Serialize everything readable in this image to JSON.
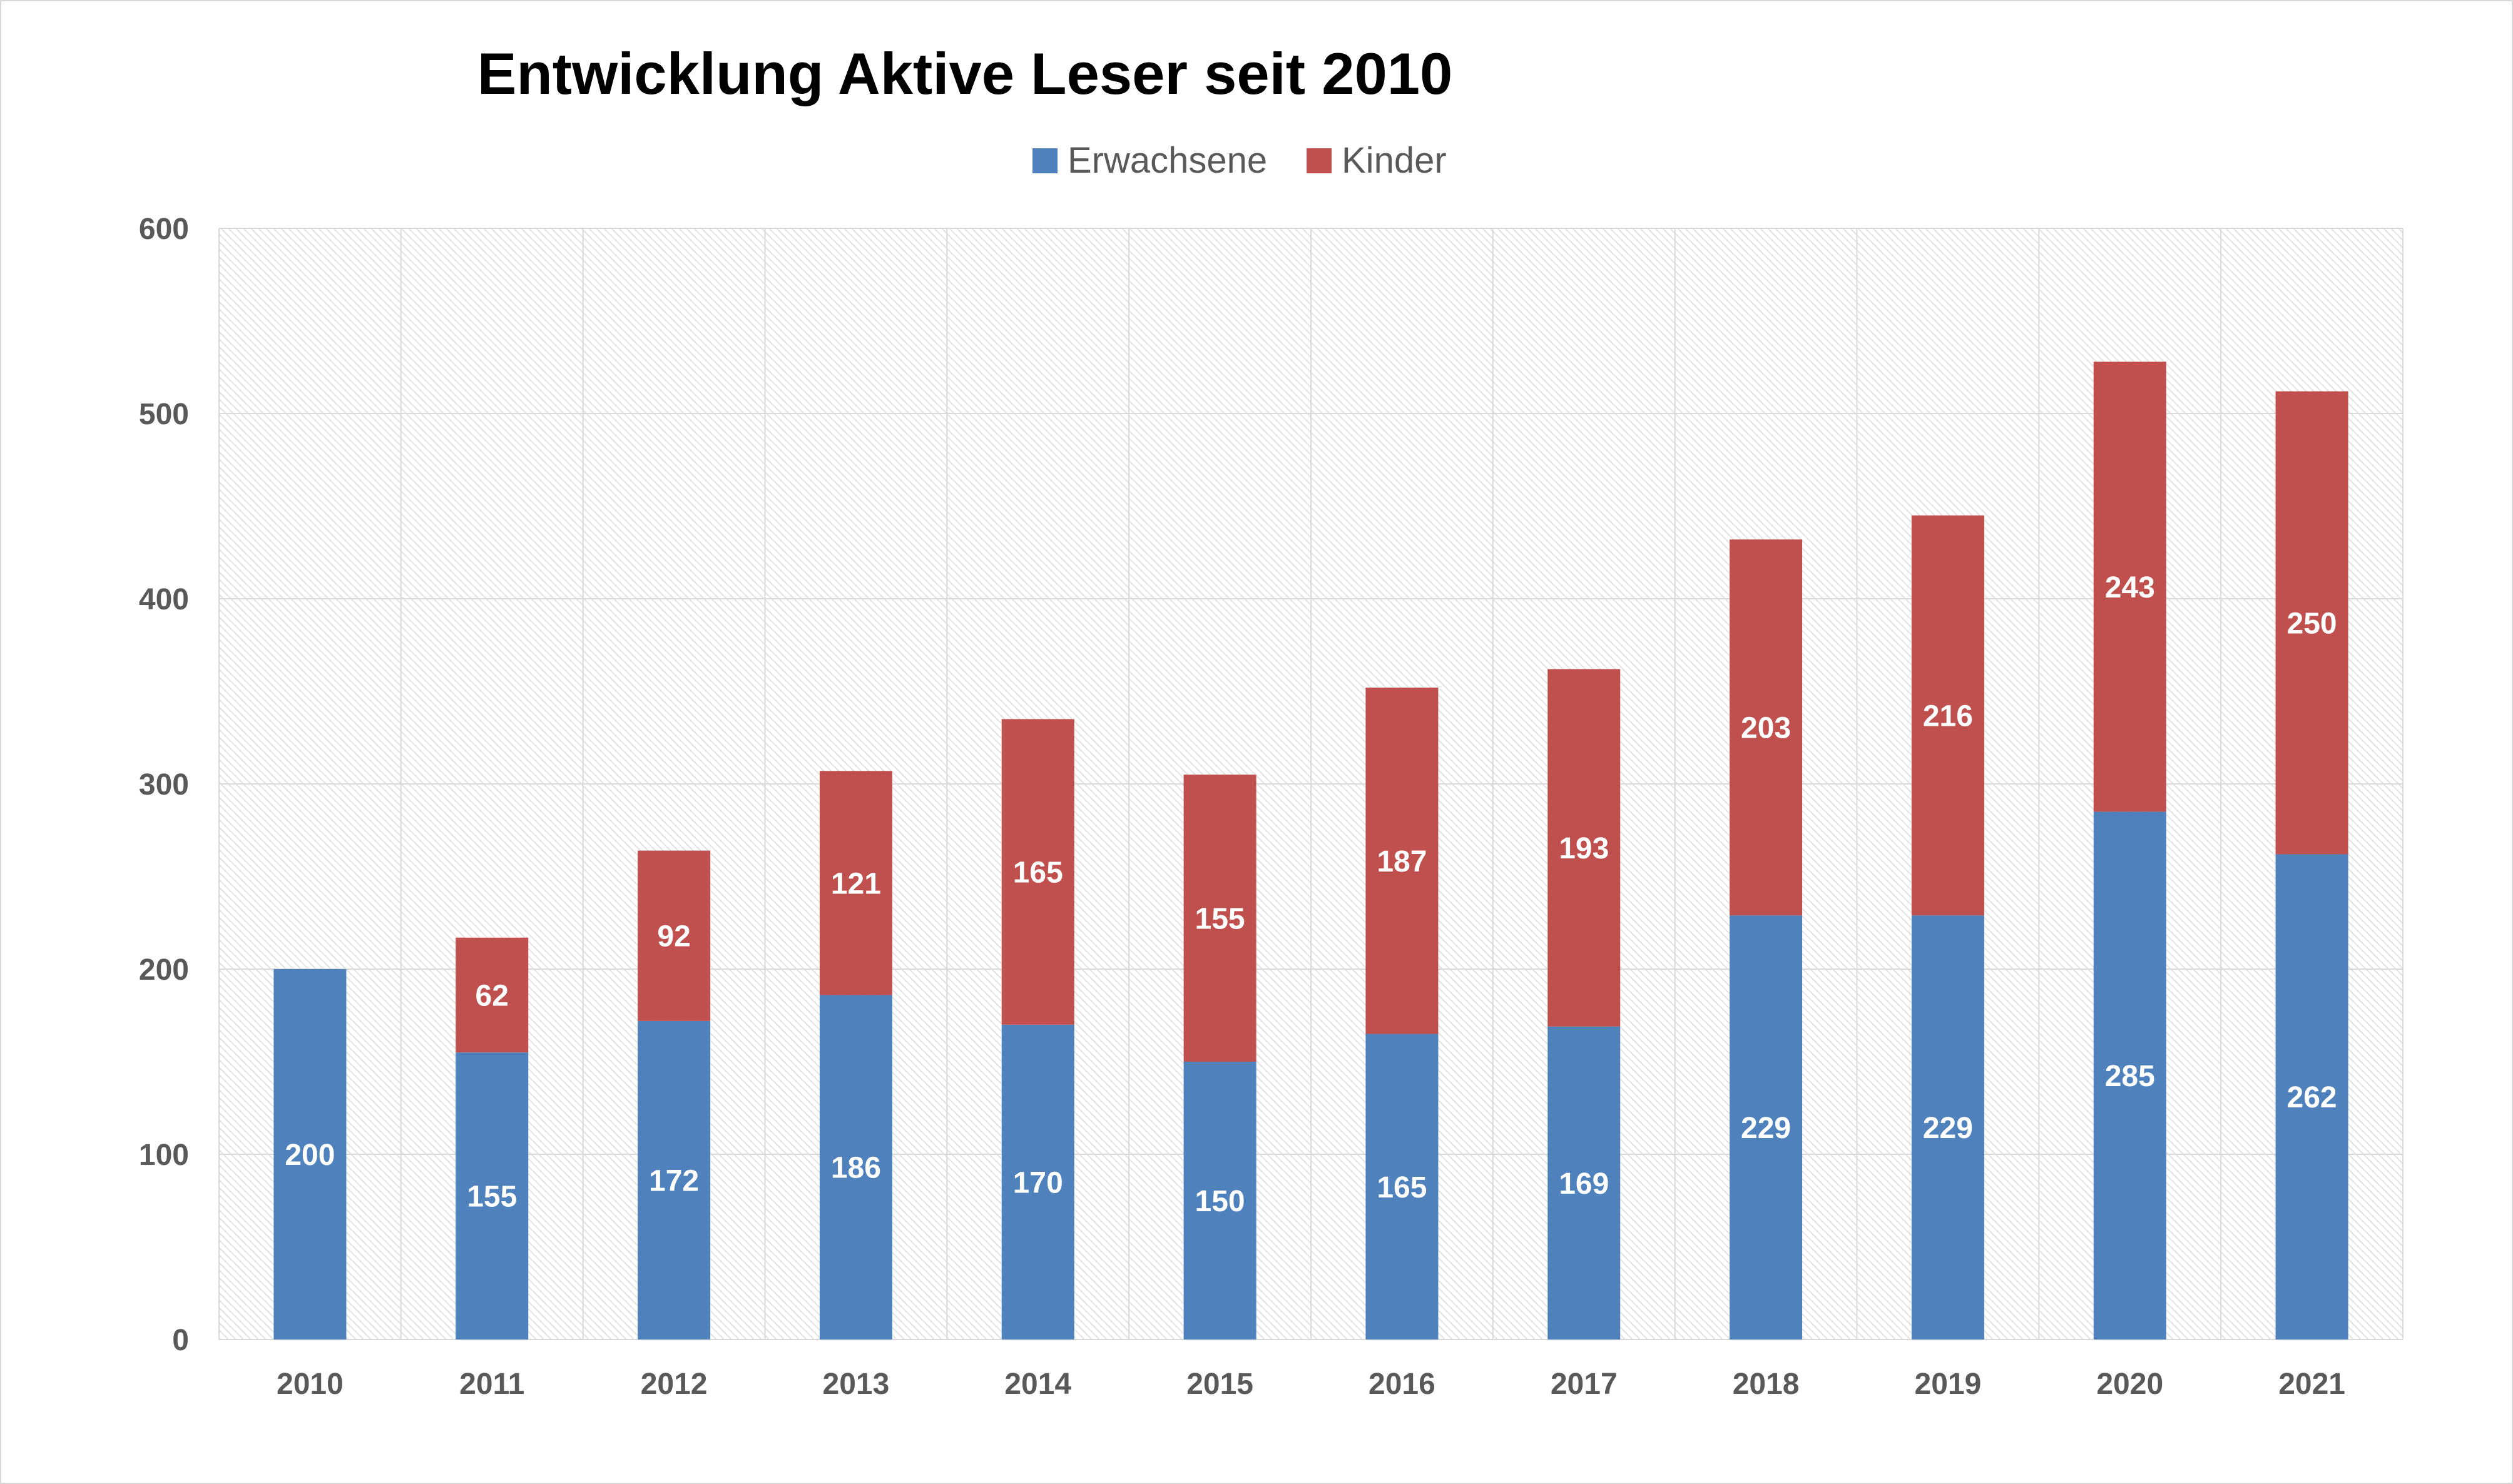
{
  "chart_data": {
    "type": "bar",
    "stacked": true,
    "title": "Entwicklung Aktive Leser seit 2010",
    "categories": [
      "2010",
      "2011",
      "2012",
      "2013",
      "2014",
      "2015",
      "2016",
      "2017",
      "2018",
      "2019",
      "2020",
      "2021"
    ],
    "series": [
      {
        "name": "Erwachsene",
        "color": "#4f81bd",
        "values": [
          200,
          155,
          172,
          186,
          170,
          150,
          165,
          169,
          229,
          229,
          285,
          262
        ]
      },
      {
        "name": "Kinder",
        "color": "#c0504d",
        "values": [
          null,
          62,
          92,
          121,
          165,
          155,
          187,
          193,
          203,
          216,
          243,
          250
        ]
      }
    ],
    "ylim": [
      0,
      600
    ],
    "yticks": [
      0,
      100,
      200,
      300,
      400,
      500,
      600
    ],
    "xlabel": "",
    "ylabel": "",
    "grid": true,
    "legend_position": "top"
  }
}
